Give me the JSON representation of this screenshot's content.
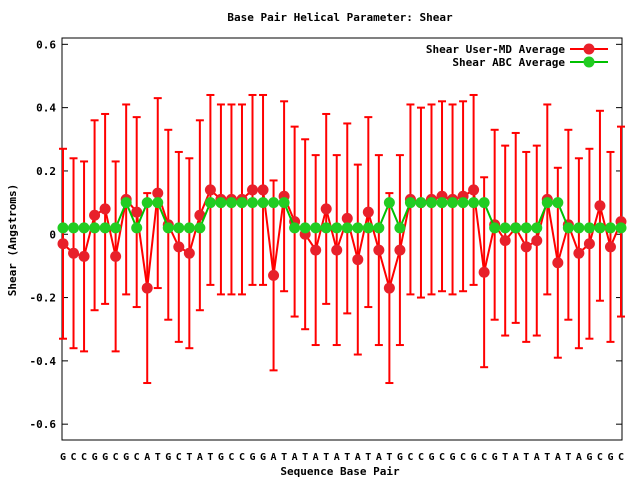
{
  "chart_data": {
    "type": "line",
    "title": "Base Pair Helical Parameter: Shear",
    "x_label": "Sequence Base Pair",
    "y_label": "Shear (Angstroms)",
    "categories": [
      "G",
      "C",
      "C",
      "G",
      "G",
      "C",
      "G",
      "C",
      "A",
      "T",
      "G",
      "C",
      "T",
      "A",
      "T",
      "G",
      "C",
      "C",
      "G",
      "G",
      "A",
      "T",
      "A",
      "T",
      "A",
      "T",
      "A",
      "T",
      "A",
      "T",
      "A",
      "T",
      "G",
      "C",
      "C",
      "G",
      "C",
      "G",
      "C",
      "G",
      "C",
      "G",
      "T",
      "A",
      "T",
      "A",
      "T",
      "A",
      "T",
      "A",
      "G",
      "C",
      "G",
      "C"
    ],
    "series": [
      {
        "name": "Shear User-MD Average",
        "color": "#ff0000",
        "marker_color": "#e8202a",
        "values": [
          -0.03,
          -0.06,
          -0.07,
          0.06,
          0.08,
          -0.07,
          0.11,
          0.07,
          -0.17,
          0.13,
          0.03,
          -0.04,
          -0.06,
          0.06,
          0.14,
          0.11,
          0.11,
          0.11,
          0.14,
          0.14,
          -0.13,
          0.12,
          0.04,
          0.0,
          -0.05,
          0.08,
          -0.05,
          0.05,
          -0.08,
          0.07,
          -0.05,
          -0.17,
          -0.05,
          0.11,
          0.1,
          0.11,
          0.12,
          0.11,
          0.12,
          0.14,
          -0.12,
          0.03,
          -0.02,
          0.02,
          -0.04,
          -0.02,
          0.11,
          -0.09,
          0.03,
          -0.06,
          -0.03,
          0.09,
          -0.04,
          0.04
        ],
        "errors": [
          0.3,
          0.3,
          0.3,
          0.3,
          0.3,
          0.3,
          0.3,
          0.3,
          0.3,
          0.3,
          0.3,
          0.3,
          0.3,
          0.3,
          0.3,
          0.3,
          0.3,
          0.3,
          0.3,
          0.3,
          0.3,
          0.3,
          0.3,
          0.3,
          0.3,
          0.3,
          0.3,
          0.3,
          0.3,
          0.3,
          0.3,
          0.3,
          0.3,
          0.3,
          0.3,
          0.3,
          0.3,
          0.3,
          0.3,
          0.3,
          0.3,
          0.3,
          0.3,
          0.3,
          0.3,
          0.3,
          0.3,
          0.3,
          0.3,
          0.3,
          0.3,
          0.3,
          0.3,
          0.3
        ]
      },
      {
        "name": "Shear ABC Average",
        "color": "#00c000",
        "marker_color": "#22cc22",
        "values": [
          0.02,
          0.02,
          0.02,
          0.02,
          0.02,
          0.02,
          0.1,
          0.02,
          0.1,
          0.1,
          0.02,
          0.02,
          0.02,
          0.02,
          0.1,
          0.1,
          0.1,
          0.1,
          0.1,
          0.1,
          0.1,
          0.1,
          0.02,
          0.02,
          0.02,
          0.02,
          0.02,
          0.02,
          0.02,
          0.02,
          0.02,
          0.1,
          0.02,
          0.1,
          0.1,
          0.1,
          0.1,
          0.1,
          0.1,
          0.1,
          0.1,
          0.02,
          0.02,
          0.02,
          0.02,
          0.02,
          0.1,
          0.1,
          0.02,
          0.02,
          0.02,
          0.02,
          0.02,
          0.02
        ]
      }
    ],
    "ylim": [
      -0.65,
      0.62
    ],
    "yticks": [
      -0.6,
      -0.4,
      -0.2,
      0,
      0.2,
      0.4,
      0.6
    ],
    "legend": "top-right"
  }
}
